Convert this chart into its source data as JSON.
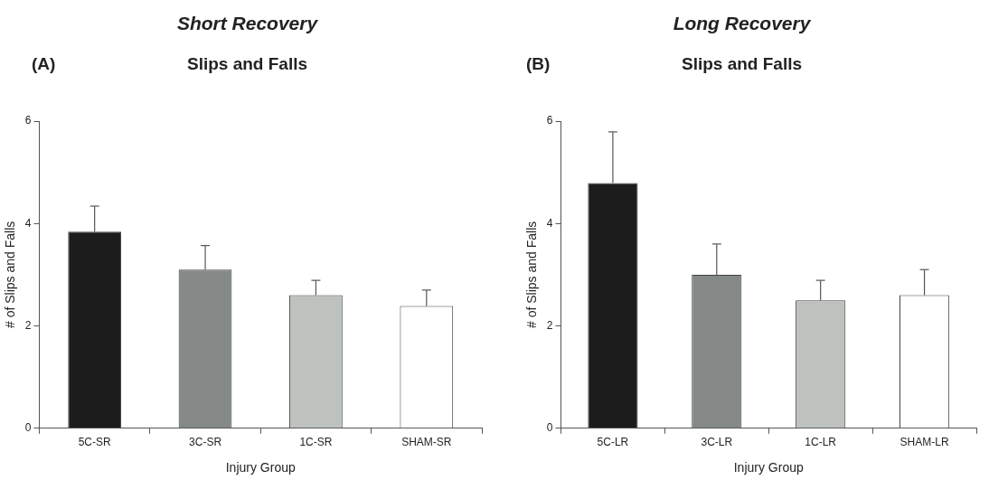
{
  "chart_data": [
    {
      "type": "bar",
      "title": "Short Recovery",
      "subtitle": "Slips and Falls",
      "annotations": [
        "(A)"
      ],
      "xlabel": "Injury Group",
      "ylabel": "# of Slips and Falls",
      "categories": [
        "5C-SR",
        "3C-SR",
        "1C-SR",
        "SHAM-SR"
      ],
      "values": [
        3.84,
        3.1,
        2.6,
        2.39
      ],
      "errors": [
        [
          3.84,
          4.34
        ],
        [
          3.1,
          3.57
        ],
        [
          2.6,
          2.89
        ],
        [
          2.39,
          2.7
        ]
      ],
      "colors": [
        "#1c1c1c",
        "#858a89",
        "#bec2be",
        "#ffffff"
      ],
      "ylim": [
        0,
        6
      ],
      "yticks": [
        0,
        2,
        4,
        6
      ]
    },
    {
      "type": "bar",
      "title": "Long Recovery",
      "subtitle": "Slips and Falls",
      "annotations": [
        "(B)"
      ],
      "xlabel": "Injury Group",
      "ylabel": "# of Slips and Falls",
      "categories": [
        "5C-LR",
        "3C-LR",
        "1C-LR",
        "SHAM-LR"
      ],
      "values": [
        4.79,
        3.0,
        2.5,
        2.6
      ],
      "errors": [
        [
          4.79,
          5.79
        ],
        [
          3.0,
          3.6
        ],
        [
          2.5,
          2.89
        ],
        [
          2.6,
          3.1
        ]
      ],
      "colors": [
        "#1c1c1c",
        "#858a89",
        "#bec2be",
        "#ffffff"
      ],
      "ylim": [
        0,
        6
      ],
      "yticks": [
        0,
        2,
        4,
        6
      ]
    }
  ]
}
